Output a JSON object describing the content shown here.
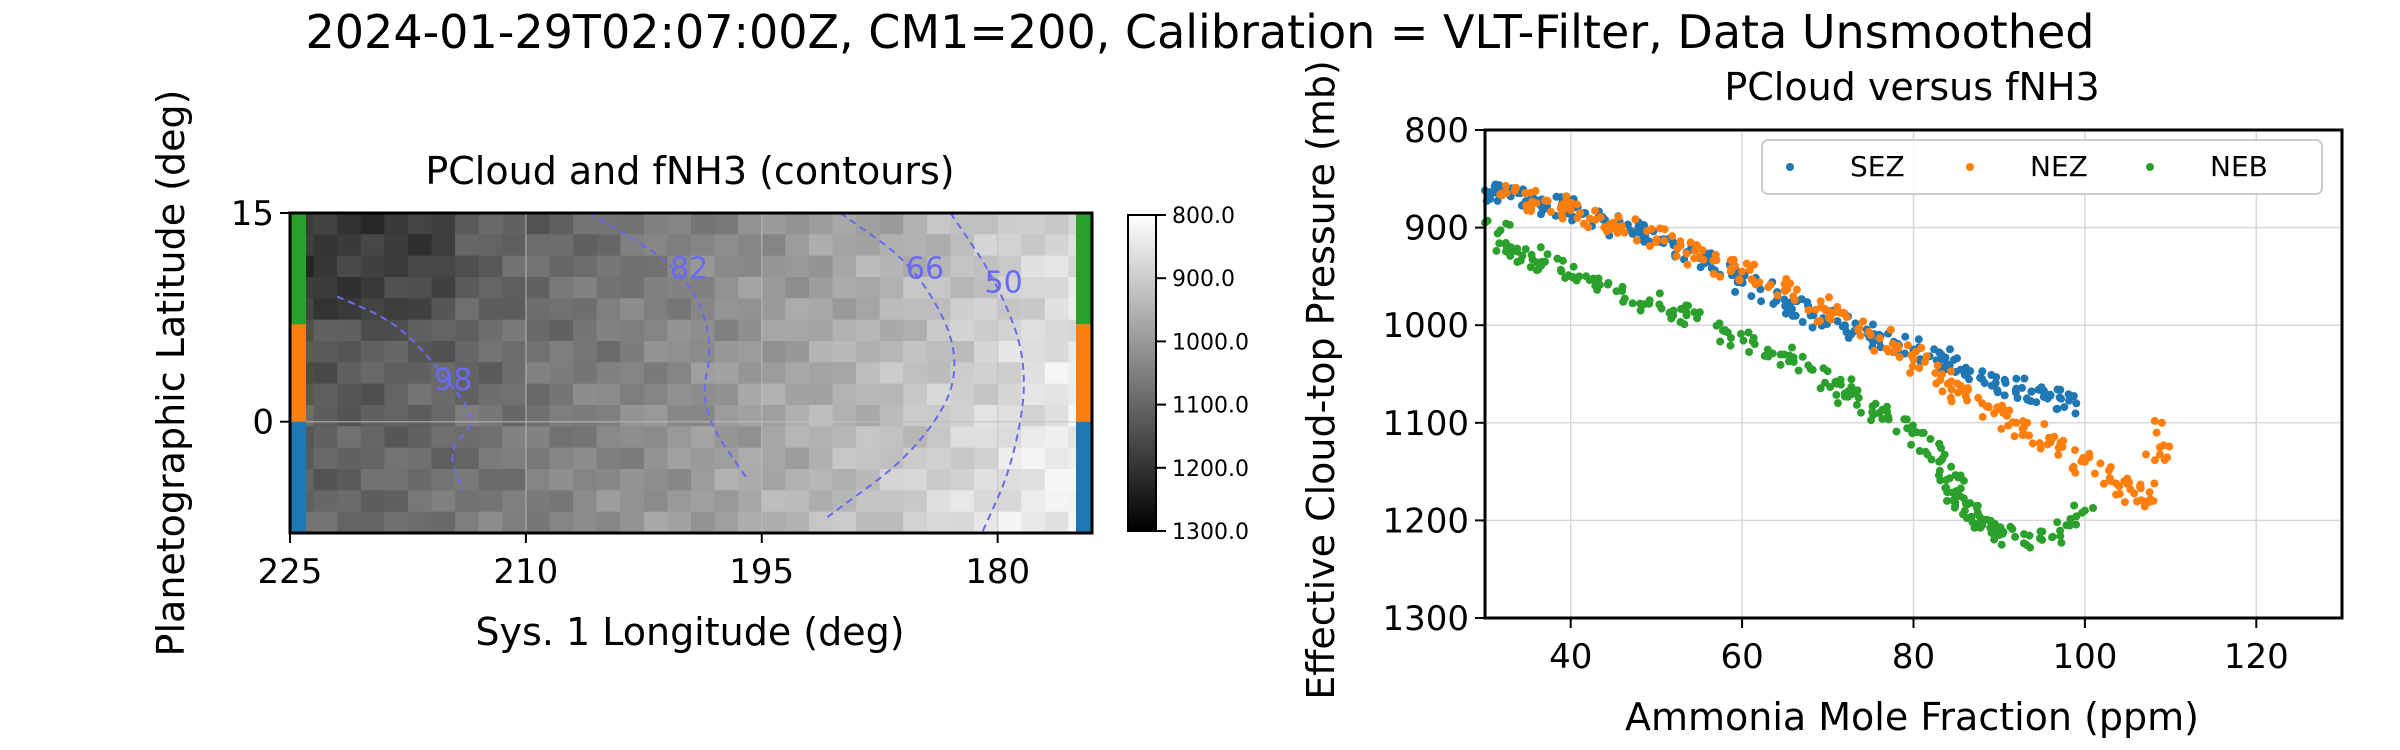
{
  "figure": {
    "suptitle": "2024-01-29T02:07:00Z, CM1=200, Calibration = VLT-Filter, Data Unsmoothed"
  },
  "colors": {
    "SEZ": "#1f77b4",
    "NEZ": "#ff7f0e",
    "NEB": "#2ca02c",
    "contour": "#6a6af0",
    "gridline": "#d8d8d8"
  },
  "chart_data": [
    {
      "type": "heatmap",
      "title": "PCloud and fNH3 (contours)",
      "xlabel": "Sys. 1 Longitude (deg)",
      "ylabel": "Planetographic Latitude (deg)",
      "xlim": [
        225,
        174
      ],
      "ylim": [
        -8,
        15
      ],
      "xticks": [
        225,
        210,
        195,
        180
      ],
      "yticks": [
        0,
        15
      ],
      "colorbar": {
        "ticks": [
          "800.0",
          "900.0",
          "1000.0",
          "1100.0",
          "1200.0",
          "1300.0"
        ],
        "range": [
          800,
          1300
        ],
        "colormap": "gray_reversed"
      },
      "contours": [
        {
          "label": "98",
          "points": [
            [
              222,
              9
            ],
            [
              218,
              7
            ],
            [
              215,
              3
            ],
            [
              213,
              0
            ],
            [
              215,
              -2
            ],
            [
              214,
              -5
            ]
          ]
        },
        {
          "label": "82",
          "points": [
            [
              206,
              15
            ],
            [
              200,
              11
            ],
            [
              198,
              6
            ],
            [
              199,
              1
            ],
            [
              196,
              -4
            ]
          ]
        },
        {
          "label": "66",
          "points": [
            [
              190,
              15
            ],
            [
              185,
              11
            ],
            [
              182,
              4
            ],
            [
              185,
              -2
            ],
            [
              191,
              -7
            ]
          ]
        },
        {
          "label": "50",
          "points": [
            [
              183,
              15
            ],
            [
              180,
              10
            ],
            [
              178,
              4
            ],
            [
              179,
              -3
            ],
            [
              181,
              -8
            ]
          ]
        }
      ],
      "bands": [
        {
          "name": "NEB",
          "lat": [
            7,
            15
          ]
        },
        {
          "name": "NEZ",
          "lat": [
            0,
            7
          ]
        },
        {
          "name": "SEZ",
          "lat": [
            -8,
            0
          ]
        }
      ]
    },
    {
      "type": "scatter",
      "title": "PCloud versus fNH3",
      "xlabel": "Ammonia Mole Fraction (ppm)",
      "ylabel": "Effective Cloud-top Pressure (mb)",
      "xlim": [
        30,
        130
      ],
      "ylim": [
        1300,
        800
      ],
      "xticks": [
        40,
        60,
        80,
        100,
        120
      ],
      "yticks": [
        800,
        900,
        1000,
        1100,
        1200,
        1300
      ],
      "legend_position": "top-right",
      "series": [
        {
          "name": "SEZ",
          "points": [
            [
              30,
              862
            ],
            [
              33,
              868
            ],
            [
              36,
              872
            ],
            [
              40,
              880
            ],
            [
              44,
              892
            ],
            [
              48,
              905
            ],
            [
              52,
              918
            ],
            [
              56,
              935
            ],
            [
              60,
              955
            ],
            [
              64,
              975
            ],
            [
              68,
              990
            ],
            [
              72,
              1000
            ],
            [
              76,
              1015
            ],
            [
              80,
              1025
            ],
            [
              84,
              1040
            ],
            [
              88,
              1055
            ],
            [
              92,
              1065
            ],
            [
              96,
              1072
            ],
            [
              99,
              1080
            ]
          ]
        },
        {
          "name": "NEZ",
          "points": [
            [
              32,
              865
            ],
            [
              36,
              875
            ],
            [
              40,
              882
            ],
            [
              45,
              895
            ],
            [
              50,
              912
            ],
            [
              55,
              930
            ],
            [
              60,
              945
            ],
            [
              65,
              965
            ],
            [
              70,
              985
            ],
            [
              75,
              1010
            ],
            [
              80,
              1035
            ],
            [
              84,
              1060
            ],
            [
              88,
              1080
            ],
            [
              92,
              1100
            ],
            [
              96,
              1120
            ],
            [
              100,
              1140
            ],
            [
              104,
              1165
            ],
            [
              108,
              1180
            ],
            [
              109,
              1100
            ]
          ]
        },
        {
          "name": "NEB",
          "points": [
            [
              30,
              895
            ],
            [
              33,
              920
            ],
            [
              37,
              935
            ],
            [
              41,
              950
            ],
            [
              46,
              965
            ],
            [
              52,
              985
            ],
            [
              58,
              1005
            ],
            [
              63,
              1025
            ],
            [
              68,
              1045
            ],
            [
              72,
              1070
            ],
            [
              76,
              1090
            ],
            [
              80,
              1110
            ],
            [
              83,
              1140
            ],
            [
              85,
              1170
            ],
            [
              86,
              1190
            ],
            [
              88,
              1205
            ],
            [
              90,
              1215
            ],
            [
              95,
              1220
            ],
            [
              100,
              1190
            ]
          ]
        }
      ]
    }
  ]
}
